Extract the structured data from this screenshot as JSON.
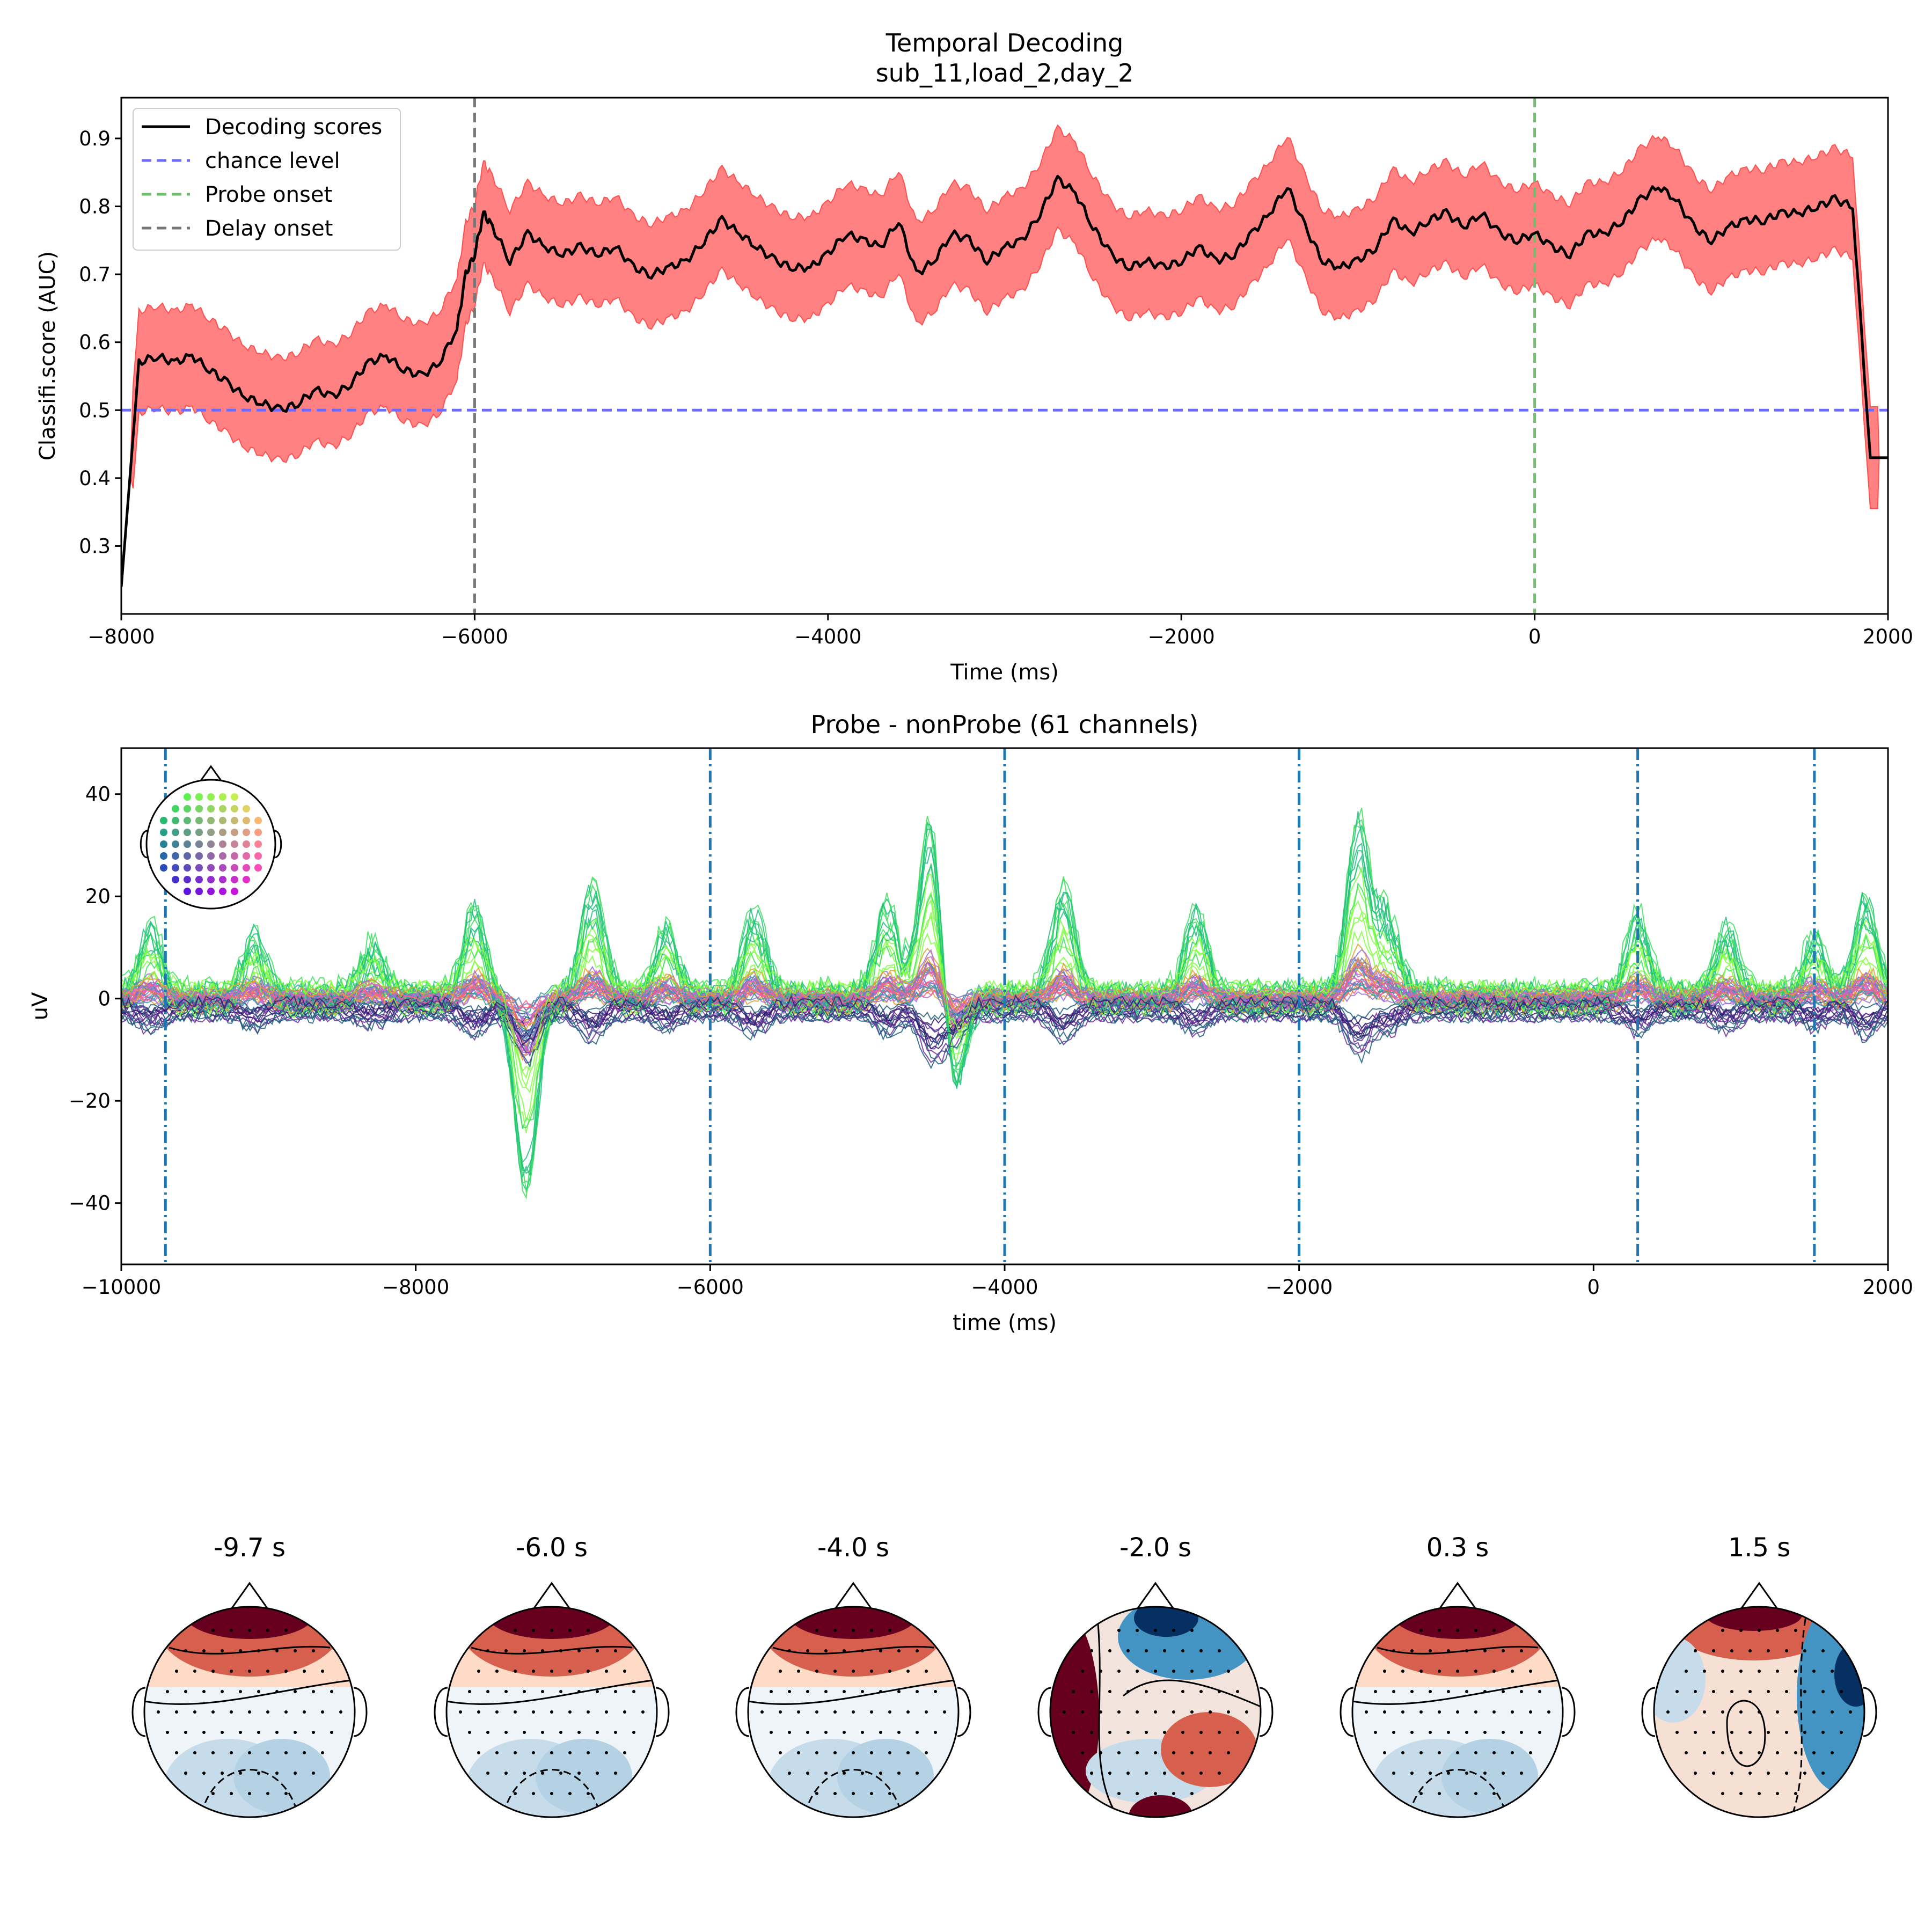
{
  "colors": {
    "decoding_line": "#000000",
    "ci_band": "#ff6b6b",
    "chance": "#6b6bff",
    "probe_onset": "#6fbf6f",
    "delay_onset": "#777777",
    "marker_lines": "#1f77b4"
  },
  "chart_data": [
    {
      "type": "line",
      "title": "Temporal Decoding",
      "subtitle": "sub_11,load_2,day_2",
      "xlabel": "Time (ms)",
      "ylabel": "Classifi.score (AUC)",
      "xlim": [
        -8000,
        2000
      ],
      "ylim": [
        0.2,
        0.96
      ],
      "xticks": [
        -8000,
        -6000,
        -4000,
        -2000,
        0,
        2000
      ],
      "xtick_labels": [
        "−8000",
        "−6000",
        "−4000",
        "−2000",
        "0",
        "2000"
      ],
      "yticks": [
        0.3,
        0.4,
        0.5,
        0.6,
        0.7,
        0.8,
        0.9
      ],
      "ytick_labels": [
        "0.3",
        "0.4",
        "0.5",
        "0.6",
        "0.7",
        "0.8",
        "0.9"
      ],
      "grid": false,
      "legend_position": "top-left",
      "legend": [
        "Decoding scores",
        "chance level",
        "Probe onset",
        "Delay onset"
      ],
      "series": [
        {
          "name": "Decoding scores",
          "x": [
            -8000,
            -7900,
            -7800,
            -7700,
            -7600,
            -7500,
            -7400,
            -7300,
            -7200,
            -7100,
            -7000,
            -6900,
            -6800,
            -6700,
            -6600,
            -6500,
            -6400,
            -6300,
            -6200,
            -6100,
            -6050,
            -6000,
            -5950,
            -5900,
            -5800,
            -5700,
            -5600,
            -5500,
            -5400,
            -5300,
            -5200,
            -5100,
            -5000,
            -4900,
            -4800,
            -4700,
            -4600,
            -4500,
            -4400,
            -4300,
            -4200,
            -4100,
            -4000,
            -3900,
            -3800,
            -3700,
            -3600,
            -3500,
            -3400,
            -3300,
            -3200,
            -3100,
            -3000,
            -2900,
            -2800,
            -2700,
            -2600,
            -2500,
            -2400,
            -2300,
            -2200,
            -2100,
            -2000,
            -1900,
            -1800,
            -1700,
            -1600,
            -1500,
            -1400,
            -1300,
            -1200,
            -1100,
            -1000,
            -900,
            -800,
            -700,
            -600,
            -500,
            -400,
            -300,
            -200,
            -100,
            0,
            100,
            200,
            300,
            400,
            500,
            600,
            700,
            800,
            900,
            1000,
            1100,
            1200,
            1300,
            1400,
            1500,
            1600,
            1700,
            1800,
            1900,
            1950,
            2000
          ],
          "y": [
            0.24,
            0.57,
            0.58,
            0.57,
            0.58,
            0.56,
            0.54,
            0.52,
            0.51,
            0.5,
            0.51,
            0.53,
            0.52,
            0.54,
            0.57,
            0.58,
            0.56,
            0.55,
            0.57,
            0.62,
            0.7,
            0.73,
            0.79,
            0.77,
            0.72,
            0.76,
            0.74,
            0.73,
            0.74,
            0.73,
            0.74,
            0.71,
            0.7,
            0.71,
            0.72,
            0.75,
            0.78,
            0.76,
            0.74,
            0.72,
            0.71,
            0.71,
            0.73,
            0.76,
            0.75,
            0.74,
            0.78,
            0.7,
            0.72,
            0.76,
            0.75,
            0.72,
            0.74,
            0.75,
            0.79,
            0.84,
            0.82,
            0.77,
            0.73,
            0.71,
            0.72,
            0.71,
            0.72,
            0.74,
            0.72,
            0.73,
            0.76,
            0.79,
            0.83,
            0.77,
            0.72,
            0.71,
            0.72,
            0.74,
            0.78,
            0.76,
            0.78,
            0.79,
            0.77,
            0.79,
            0.76,
            0.75,
            0.76,
            0.74,
            0.73,
            0.76,
            0.76,
            0.78,
            0.81,
            0.83,
            0.81,
            0.77,
            0.75,
            0.77,
            0.78,
            0.78,
            0.79,
            0.79,
            0.8,
            0.81,
            0.8,
            0.43,
            0.43,
            0.43
          ],
          "ci_half_width": 0.075
        },
        {
          "name": "chance level",
          "x": [
            -8000,
            2000
          ],
          "y": [
            0.5,
            0.5
          ]
        }
      ],
      "vlines": [
        {
          "name": "Probe onset",
          "x": 0
        },
        {
          "name": "Delay onset",
          "x": -6000
        }
      ]
    },
    {
      "type": "line",
      "title": "Probe - nonProbe (61 channels)",
      "xlabel": "time (ms)",
      "ylabel": "uV",
      "xlim": [
        -10000,
        2000
      ],
      "ylim": [
        -52,
        49
      ],
      "xticks": [
        -10000,
        -8000,
        -6000,
        -4000,
        -2000,
        0,
        2000
      ],
      "xtick_labels": [
        "−10000",
        "−8000",
        "−6000",
        "−4000",
        "−2000",
        "0",
        "2000"
      ],
      "yticks": [
        -40,
        -20,
        0,
        20,
        40
      ],
      "ytick_labels": [
        "−40",
        "−20",
        "0",
        "20",
        "40"
      ],
      "grid": false,
      "channel_count": 61,
      "marker_times_ms": [
        -9700,
        -6000,
        -4000,
        -2000,
        300,
        1500
      ],
      "channel_palette": [
        "#7fff3f",
        "#3fdf5f",
        "#1fbf7f",
        "#2f9f9f",
        "#5f7fbf",
        "#9f6fdf",
        "#df5fbf",
        "#ff5f7f",
        "#e0a030",
        "#6f2f9f",
        "#2f1f6f",
        "#1f5f7f"
      ],
      "peaks": [
        {
          "t": -9800,
          "amp": 14
        },
        {
          "t": -9100,
          "amp": 12
        },
        {
          "t": -8300,
          "amp": 10
        },
        {
          "t": -7600,
          "amp": 18
        },
        {
          "t": -7250,
          "amp": -40
        },
        {
          "t": -6800,
          "amp": 22
        },
        {
          "t": -6300,
          "amp": 14
        },
        {
          "t": -5700,
          "amp": 17
        },
        {
          "t": -4800,
          "amp": 18
        },
        {
          "t": -4500,
          "amp": 38
        },
        {
          "t": -4350,
          "amp": -22
        },
        {
          "t": -3600,
          "amp": 22
        },
        {
          "t": -2700,
          "amp": 17
        },
        {
          "t": -1600,
          "amp": 36
        },
        {
          "t": -1400,
          "amp": 16
        },
        {
          "t": 300,
          "amp": 16
        },
        {
          "t": 900,
          "amp": 14
        },
        {
          "t": 1500,
          "amp": 12
        },
        {
          "t": 1850,
          "amp": 20
        }
      ]
    },
    {
      "type": "heatmap",
      "topomaps": [
        {
          "label": "-9.7 s",
          "pattern": "frontal-positive"
        },
        {
          "label": "-6.0 s",
          "pattern": "frontal-positive"
        },
        {
          "label": "-4.0 s",
          "pattern": "frontal-positive"
        },
        {
          "label": "-2.0 s",
          "pattern": "mixed"
        },
        {
          "label": "0.3 s",
          "pattern": "frontal-positive"
        },
        {
          "label": "1.5 s",
          "pattern": "mixed-right-negative"
        }
      ],
      "colormap": [
        "#053061",
        "#4393c3",
        "#d1e5f0",
        "#f7f7f7",
        "#fddbc7",
        "#d6604d",
        "#67001f"
      ]
    }
  ]
}
